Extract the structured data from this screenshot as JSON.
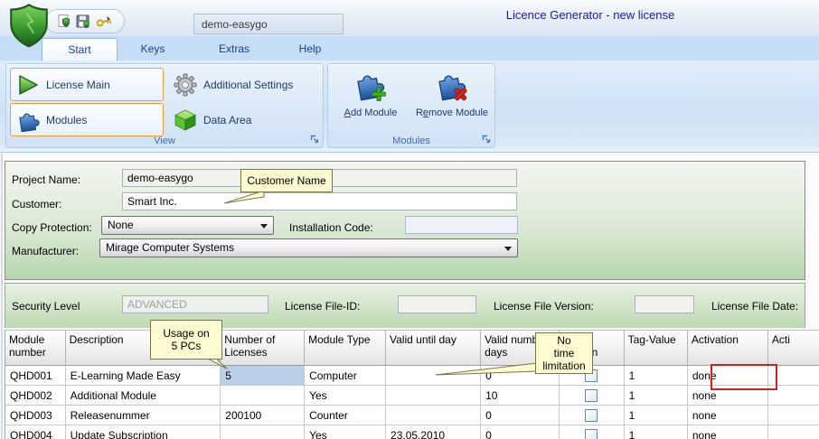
{
  "titlebar": {
    "title": "Licence Generator - new license",
    "project_box": "demo-easygo",
    "qat_icons": [
      "new-license-shield-icon",
      "save-license-icon",
      "sign-key-icon"
    ]
  },
  "tabs": [
    {
      "label": "Start",
      "active": true
    },
    {
      "label": "Keys",
      "active": false
    },
    {
      "label": "Extras",
      "active": false
    },
    {
      "label": "Help",
      "active": false
    }
  ],
  "ribbon": {
    "view_group": {
      "label": "View",
      "buttons": [
        {
          "label": "License Main",
          "icon": "play-icon",
          "highlighted": true
        },
        {
          "label": "Additional Settings",
          "icon": "gear-icon",
          "highlighted": false
        },
        {
          "label": "Modules",
          "icon": "puzzle-icon",
          "highlighted": true
        },
        {
          "label": "Data Area",
          "icon": "cube-icon",
          "highlighted": false
        }
      ]
    },
    "modules_group": {
      "label": "Modules",
      "add_button": {
        "pre": "",
        "underlined": "A",
        "post": "dd Module",
        "icon": "puzzle-plus-icon"
      },
      "remove_button": {
        "pre": "R",
        "underlined": "e",
        "post": "move Module",
        "icon": "puzzle-x-icon"
      }
    }
  },
  "form": {
    "project_name": {
      "label": "Project Name:",
      "value": "demo-easygo"
    },
    "customer": {
      "label": "Customer:",
      "value": "Smart Inc."
    },
    "copy_protection": {
      "label": "Copy Protection:",
      "value": "None"
    },
    "installation_code": {
      "label": "Installation Code:",
      "value": ""
    },
    "manufacturer": {
      "label": "Manufacturer:",
      "value": "Mirage Computer Systems"
    }
  },
  "security": {
    "security_level": {
      "label": "Security Level",
      "value": "ADVANCED"
    },
    "file_id": {
      "label": "License File-ID:",
      "value": ""
    },
    "file_version": {
      "label": "License File Version:",
      "value": ""
    },
    "file_date": {
      "label": "License File Date:",
      "value": ""
    }
  },
  "table": {
    "columns": [
      "Module number",
      "Description",
      "Number of Licenses",
      "Module Type",
      "Valid until day",
      "Valid number days",
      "Demo version",
      "Tag-Value",
      "Activation",
      "Acti"
    ],
    "checkbox_column": 6,
    "selected_cell": {
      "row": 0,
      "col": 2
    },
    "rows": [
      {
        "cells": [
          "QHD001",
          "E-Learning Made Easy",
          "5",
          "Computer",
          "",
          "0",
          "CHECKBOX",
          "1",
          "done",
          ""
        ]
      },
      {
        "cells": [
          "QHD002",
          "Additional Module",
          "",
          "Yes",
          "",
          "10",
          "CHECKBOX",
          "1",
          "none",
          ""
        ]
      },
      {
        "cells": [
          "QHD003",
          "Releasenummer",
          "200100",
          "Counter",
          "",
          "0",
          "CHECKBOX",
          "1",
          "none",
          ""
        ]
      },
      {
        "cells": [
          "QHD004",
          "Update Subscription",
          "",
          "Yes",
          "23.05.2010",
          "0",
          "CHECKBOX",
          "1",
          "none",
          ""
        ]
      }
    ]
  },
  "callouts": {
    "customer_name": {
      "lines": [
        "Customer Name"
      ]
    },
    "usage": {
      "lines": [
        "Usage on",
        "5 PCs"
      ]
    },
    "no_time": {
      "lines": [
        "No",
        "time",
        "limitation"
      ]
    }
  },
  "colors": {
    "title_text": "#1a1aa8",
    "tab_text": "#15428b",
    "accent_orange": "#f09a3e",
    "callout_bg": "#fdfbd2",
    "selected_cell": "#b9cfe8",
    "annotation_red": "#cc2222"
  }
}
